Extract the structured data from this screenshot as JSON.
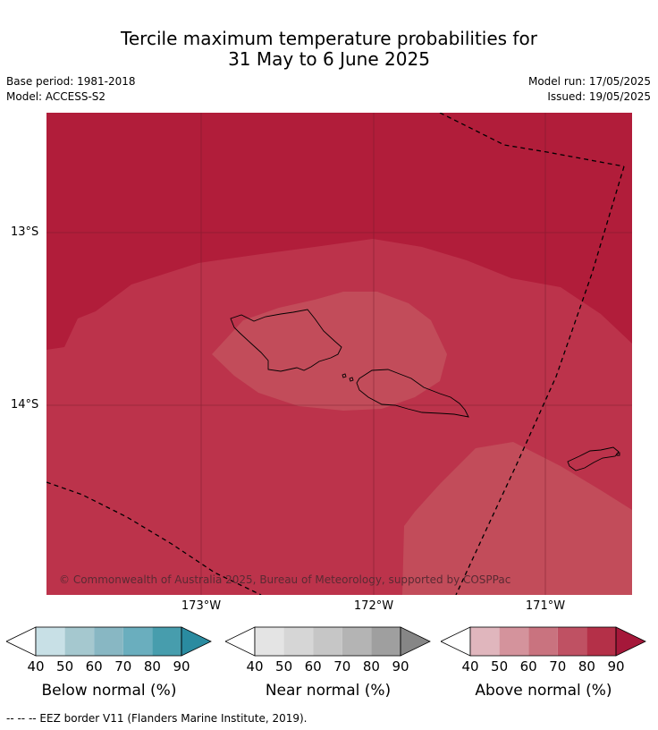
{
  "title_line1": "Tercile maximum temperature probabilities for",
  "title_line2": "31 May to 6 June 2025",
  "base_period": "Base period: 1981-2018",
  "model": "Model: ACCESS-S2",
  "model_run": "Model run: 17/05/2025",
  "issued": "Issued: 19/05/2025",
  "copyright": "© Commonwealth of Australia 2025, Bureau of Meteorology, supported by COSPPac",
  "lat_ticks": [
    "13°S",
    "14°S"
  ],
  "lon_ticks": [
    "173°W",
    "172°W",
    "171°W"
  ],
  "colorbars": [
    {
      "label": "Below normal (%)",
      "ticks": [
        "40",
        "50",
        "60",
        "70",
        "80",
        "90"
      ],
      "colors": [
        "#ffffff",
        "#c8e0e6",
        "#a5c8cf",
        "#88b7c3",
        "#6aaebe",
        "#479dad",
        "#2a8ba0"
      ]
    },
    {
      "label": "Near normal (%)",
      "ticks": [
        "40",
        "50",
        "60",
        "70",
        "80",
        "90"
      ],
      "colors": [
        "#ffffff",
        "#e4e4e4",
        "#d6d6d6",
        "#c6c6c6",
        "#b4b4b4",
        "#9f9f9f",
        "#868686"
      ]
    },
    {
      "label": "Above normal (%)",
      "ticks": [
        "40",
        "50",
        "60",
        "70",
        "80",
        "90"
      ],
      "colors": [
        "#ffffff",
        "#e0b6bd",
        "#d4939c",
        "#c9737f",
        "#bf5163",
        "#b43048",
        "#a5183a"
      ]
    }
  ],
  "eez_legend": "--  --  -- EEZ border V11 (Flanders Marine Institute, 2019).",
  "map_colors": {
    "p90": "#b11d3a",
    "p80": "#bc334b",
    "p70": "#c24c5a"
  }
}
